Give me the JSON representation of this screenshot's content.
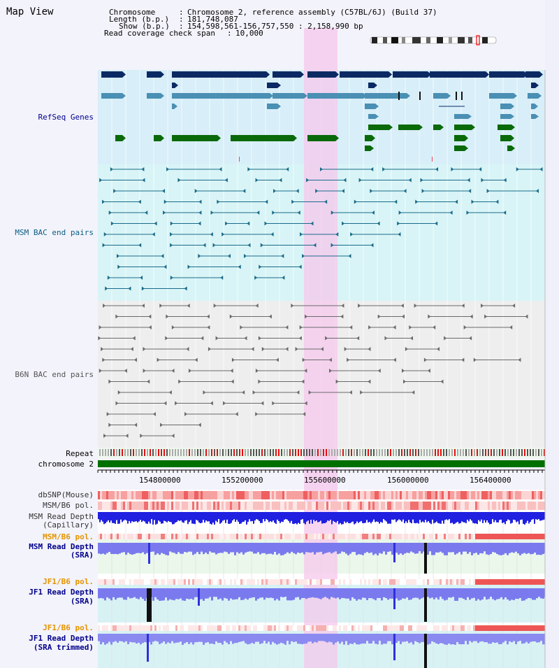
{
  "title": "Map View",
  "info": {
    "chromosome_key": "Chromosome",
    "chromosome_value": "Chromosome 2, reference assembly (C57BL/6J) (Build 37)",
    "length_key": "Length (b.p.)",
    "length_value": "181,748,087",
    "show_key": "Show (b.p.)",
    "show_value": "154,598,561-156,757,550 : 2,158,990 bp",
    "span_key": "Read coverage check span",
    "span_value": "10,000"
  },
  "tracks": {
    "refseq": "RefSeq Genes",
    "msm_bac": "MSM BAC end pairs",
    "b6n_bac": "B6N BAC end pairs",
    "repeat": "Repeat",
    "chromosome": "chromosome 2",
    "dbsnp": "dbSNP(Mouse)",
    "msm_b6_pol_1": "MSM/B6 pol.",
    "msm_read_depth_cap_1": "MSM Read Depth",
    "msm_read_depth_cap_2": "(Capillary)",
    "msm_b6_pol_2": "MSM/B6 pol.",
    "msm_read_depth_sra_1": "MSM Read Depth",
    "msm_read_depth_sra_2": "(SRA)",
    "jf1_b6_pol_1": "JF1/B6 pol.",
    "jf1_read_depth_sra_1": "JF1 Read Depth",
    "jf1_read_depth_sra_2": "(SRA)",
    "jf1_b6_pol_2": "JF1/B6 pol.",
    "jf1_read_depth_trim_1": "JF1 Read Depth",
    "jf1_read_depth_trim_2": "(SRA trimmed)"
  },
  "axis": {
    "ticks": [
      "154800000",
      "155200000",
      "155600000",
      "156000000",
      "156400000"
    ]
  },
  "colors": {
    "refseq_bg": "#d8eef8",
    "msm_bg": "#d8f4f6",
    "b6n_bg": "#eeeeee",
    "highlight": "#f6c8ec",
    "navy": "#0b2a63",
    "steel": "#4a8fb4",
    "green": "#0a6a0a",
    "teal_pair": "#1a6b8a",
    "gray_pair": "#6a6a6a",
    "chromosome": "#007000",
    "read_depth": "#3a3adc",
    "jf1_pol_label": "#e59400",
    "msm_pol2_label": "#e59400",
    "track_label_blue": "#00008b"
  }
}
